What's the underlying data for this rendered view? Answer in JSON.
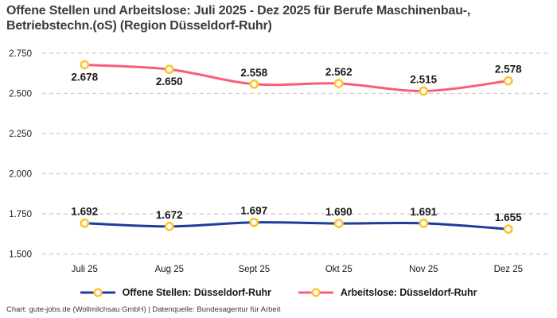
{
  "page": {
    "title_lines": [
      "Offene Stellen und Arbeitslose: Juli 2025 - Dez 2025 für Berufe Maschinenbau-,",
      "Betriebstechn.(oS) (Region Düsseldorf-Ruhr)"
    ],
    "footer": "Chart: gute-jobs.de (Wollmilchsau GmbH) | Datenquelle: Bundesagentur für Arbeit"
  },
  "colors": {
    "offene_stellen": "#1e3c9b",
    "arbeitslose": "#f75d7d",
    "marker_ring": "#fcc430",
    "marker_fill": "#ffffff",
    "gridline": "#cbcbcb",
    "axis_text": "#1a1a1a",
    "data_label": "#1a1a1a",
    "title_text": "#3b3b3b",
    "footer_text": "#3a3a3a"
  },
  "chart_data": {
    "type": "line",
    "title": "Offene Stellen und Arbeitslose: Juli 2025 - Dez 2025 für Berufe Maschinenbau-, Betriebstechn.(oS) (Region Düsseldorf-Ruhr)",
    "categories": [
      "Juli 25",
      "Aug 25",
      "Sept 25",
      "Okt 25",
      "Nov 25",
      "Dez 25"
    ],
    "series": [
      {
        "name": "Offene Stellen: Düsseldorf-Ruhr",
        "key": "offene-stellen",
        "color_key": "offene_stellen",
        "values": [
          1692,
          1672,
          1697,
          1690,
          1691,
          1655
        ],
        "labels": [
          "1.692",
          "1.672",
          "1.697",
          "1.690",
          "1.691",
          "1.655"
        ],
        "label_pos": [
          "above",
          "above",
          "above",
          "above",
          "above",
          "above"
        ]
      },
      {
        "name": "Arbeitslose: Düsseldorf-Ruhr",
        "key": "arbeitslose",
        "color_key": "arbeitslose",
        "values": [
          2678,
          2650,
          2558,
          2562,
          2515,
          2578
        ],
        "labels": [
          "2.678",
          "2.650",
          "2.558",
          "2.562",
          "2.515",
          "2.578"
        ],
        "label_pos": [
          "below",
          "below",
          "above",
          "above",
          "above",
          "above"
        ]
      }
    ],
    "y_ticks": [
      {
        "value": 2750,
        "label": "2.750"
      },
      {
        "value": 2500,
        "label": "2.500"
      },
      {
        "value": 2250,
        "label": "2.250"
      },
      {
        "value": 2000,
        "label": "2.000"
      },
      {
        "value": 1750,
        "label": "1.750"
      },
      {
        "value": 1500,
        "label": "1.500"
      }
    ],
    "ylim": [
      1500,
      2750
    ],
    "grid": "dashed-horizontal",
    "legend_position": "bottom-center",
    "line_smoothing": true,
    "marker": "hollow-circle"
  },
  "legend": {
    "items": [
      {
        "label": "Offene Stellen: Düsseldorf-Ruhr",
        "key": "offene-stellen",
        "color_key": "offene_stellen"
      },
      {
        "label": "Arbeitslose: Düsseldorf-Ruhr",
        "key": "arbeitslose",
        "color_key": "arbeitslose"
      }
    ]
  }
}
